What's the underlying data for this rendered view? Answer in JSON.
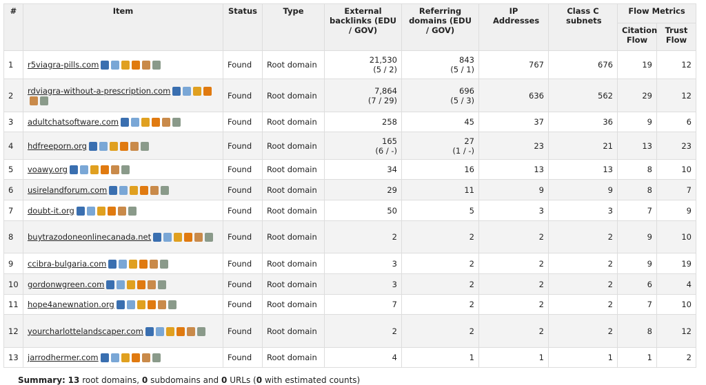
{
  "table": {
    "header": {
      "num": "#",
      "item": "Item",
      "status": "Status",
      "type": "Type",
      "backlinks": "External backlinks (EDU / GOV)",
      "referring": "Referring domains (EDU / GOV)",
      "ip": "IP Addresses",
      "class_c": "Class C subnets",
      "flow": "Flow Metrics",
      "citation_flow": "Citation Flow",
      "trust_flow": "Trust Flow"
    },
    "rows": [
      {
        "num": 1,
        "item": "r5viagra-pills.com",
        "status": "Found",
        "type": "Root domain",
        "backlinks": "21,530",
        "backlinks_edu_gov": "(5 / 2)",
        "referring": 843,
        "referring_edu_gov": "(5 / 1)",
        "ip": 767,
        "class_c": 676,
        "citation_flow": 19,
        "trust_flow": 12
      },
      {
        "num": 2,
        "item": "rdviagra-without-a-prescription.com",
        "status": "Found",
        "type": "Root domain",
        "backlinks": "7,864",
        "backlinks_edu_gov": "(7 / 29)",
        "referring": 696,
        "referring_edu_gov": "(5 / 3)",
        "ip": 636,
        "class_c": 562,
        "citation_flow": 29,
        "trust_flow": 12
      },
      {
        "num": 3,
        "item": "adultchatsoftware.com",
        "status": "Found",
        "type": "Root domain",
        "backlinks": 258,
        "referring": 45,
        "ip": 37,
        "class_c": 36,
        "citation_flow": 9,
        "trust_flow": 6
      },
      {
        "num": 4,
        "item": "hdfreeporn.org",
        "status": "Found",
        "type": "Root domain",
        "backlinks": 165,
        "backlinks_edu_gov": "(6 / -)",
        "referring": 27,
        "referring_edu_gov": "(1 / -)",
        "ip": 23,
        "class_c": 21,
        "citation_flow": 13,
        "trust_flow": 23
      },
      {
        "num": 5,
        "item": "voawy.org",
        "status": "Found",
        "type": "Root domain",
        "backlinks": 34,
        "referring": 16,
        "ip": 13,
        "class_c": 13,
        "citation_flow": 8,
        "trust_flow": 10
      },
      {
        "num": 6,
        "item": "usirelandforum.com",
        "status": "Found",
        "type": "Root domain",
        "backlinks": 29,
        "referring": 11,
        "ip": 9,
        "class_c": 9,
        "citation_flow": 8,
        "trust_flow": 7
      },
      {
        "num": 7,
        "item": "doubt-it.org",
        "status": "Found",
        "type": "Root domain",
        "backlinks": 50,
        "referring": 5,
        "ip": 3,
        "class_c": 3,
        "citation_flow": 7,
        "trust_flow": 9
      },
      {
        "num": 8,
        "item": "buytrazodoneonlinecanada.net",
        "status": "Found",
        "type": "Root domain",
        "backlinks": 2,
        "referring": 2,
        "ip": 2,
        "class_c": 2,
        "citation_flow": 9,
        "trust_flow": 10
      },
      {
        "num": 9,
        "item": "ccibra-bulgaria.com",
        "status": "Found",
        "type": "Root domain",
        "backlinks": 3,
        "referring": 2,
        "ip": 2,
        "class_c": 2,
        "citation_flow": 9,
        "trust_flow": 19
      },
      {
        "num": 10,
        "item": "gordonwgreen.com",
        "status": "Found",
        "type": "Root domain",
        "backlinks": 3,
        "referring": 2,
        "ip": 2,
        "class_c": 2,
        "citation_flow": 6,
        "trust_flow": 4
      },
      {
        "num": 11,
        "item": "hope4anewnation.org",
        "status": "Found",
        "type": "Root domain",
        "backlinks": 7,
        "referring": 2,
        "ip": 2,
        "class_c": 2,
        "citation_flow": 7,
        "trust_flow": 10
      },
      {
        "num": 12,
        "item": "yourcharlottelandscaper.com",
        "status": "Found",
        "type": "Root domain",
        "backlinks": 2,
        "referring": 2,
        "ip": 2,
        "class_c": 2,
        "citation_flow": 8,
        "trust_flow": 12
      },
      {
        "num": 13,
        "item": "jarrodhermer.com",
        "status": "Found",
        "type": "Root domain",
        "backlinks": 4,
        "referring": 1,
        "ip": 1,
        "class_c": 1,
        "citation_flow": 1,
        "trust_flow": 2
      }
    ]
  },
  "summary": {
    "label": "Summary:",
    "root_count": 13,
    "root_text": "root domains,",
    "sub_count": 0,
    "sub_text": "subdomains and",
    "url_count": 0,
    "url_text": "URLs (",
    "est_count": 0,
    "est_text": "with estimated counts)"
  }
}
